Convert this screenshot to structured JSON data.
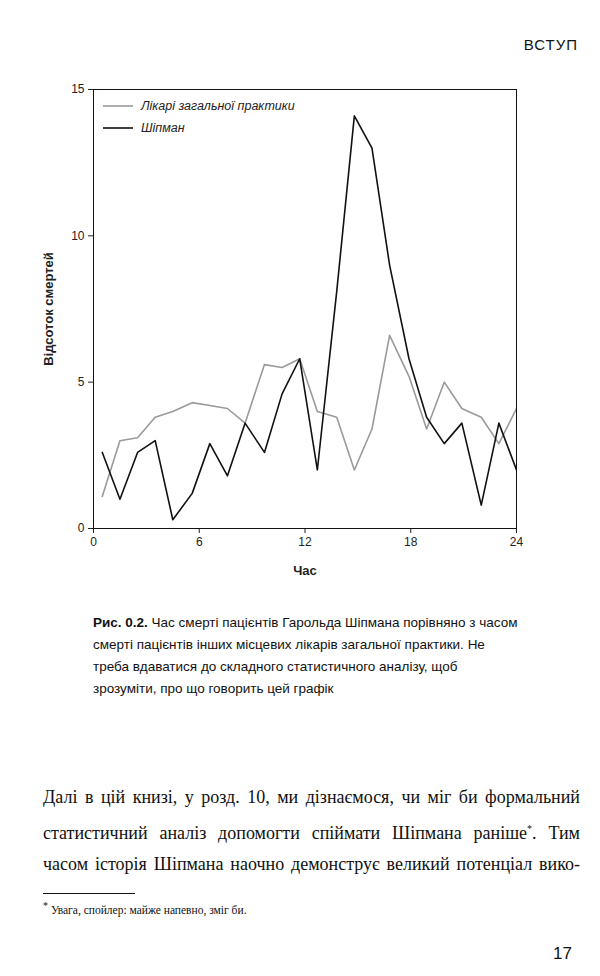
{
  "chart_data": {
    "type": "line",
    "x_label": "Час",
    "y_label": "Відсоток смертей",
    "x": [
      0.5,
      1.5,
      2.5,
      3.5,
      4.5,
      5.6,
      6.6,
      7.6,
      8.6,
      9.7,
      10.7,
      11.7,
      12.7,
      13.8,
      14.8,
      15.8,
      16.8,
      17.9,
      18.9,
      19.9,
      20.9,
      22.0,
      23.0,
      24.0
    ],
    "series": [
      {
        "name": "Лікарі загальної практики",
        "color": "#9a9a9a",
        "values": [
          1.1,
          3.0,
          3.1,
          3.8,
          4.0,
          4.3,
          4.2,
          4.1,
          3.6,
          5.6,
          5.5,
          5.8,
          4.0,
          3.8,
          2.0,
          3.4,
          6.6,
          5.2,
          3.4,
          5.0,
          4.1,
          3.8,
          2.9,
          4.1
        ]
      },
      {
        "name": "Шіпман",
        "color": "#111111",
        "values": [
          2.6,
          1.0,
          2.6,
          3.0,
          0.3,
          1.2,
          2.9,
          1.8,
          3.6,
          2.6,
          4.6,
          5.8,
          2.0,
          8.1,
          14.1,
          13.0,
          9.0,
          5.8,
          3.8,
          2.9,
          3.6,
          0.8,
          3.6,
          2.0
        ]
      }
    ],
    "xlim": [
      0,
      24
    ],
    "xticks": [
      0,
      6,
      12,
      18,
      24
    ],
    "ylim": [
      0,
      15
    ],
    "yticks": [
      0,
      5,
      10,
      15
    ],
    "legend": "top-left"
  },
  "page": {
    "header": "ВСТУП",
    "caption_label": "Рис. 0.2.",
    "caption_text": "Час смерті пацієнтів Гарольда Шіпмана порівняно з часом смерті пацієнтів інших місцевих лікарів загальної практики. Не треба вдаватися до складного статистичного аналізу, щоб зрозуміти, про що говорить цей графік",
    "body_before_mark": "Далі в цій книзі, у розд. 10, ми дізнаємося, чи міг би формальний статистичний аналіз допомогти спіймати Шіпмана раніше",
    "footnote_mark": "*",
    "body_after_mark": ". Тим часом історія Шіпмана наочно демонструє великий потенціал вико-",
    "footnote_text": "Увага, спойлер: майже напевно, зміг би.",
    "page_number": 17
  }
}
